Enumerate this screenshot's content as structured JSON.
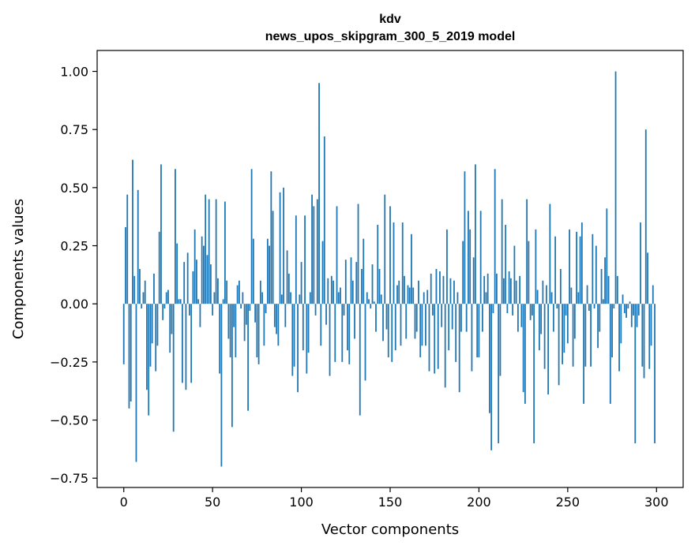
{
  "chart_data": {
    "type": "bar",
    "title": "kdv",
    "subtitle": "news_upos_skipgram_300_5_2019 model",
    "xlabel": "Vector components",
    "ylabel": "Components values",
    "xlim": [
      -15,
      315
    ],
    "ylim": [
      -0.79,
      1.09
    ],
    "x_ticks": [
      0,
      50,
      100,
      150,
      200,
      250,
      300
    ],
    "x_tick_labels": [
      "0",
      "50",
      "100",
      "150",
      "200",
      "250",
      "300"
    ],
    "y_ticks": [
      -0.75,
      -0.5,
      -0.25,
      0.0,
      0.25,
      0.5,
      0.75,
      1.0
    ],
    "y_tick_labels": [
      "−0.75",
      "−0.50",
      "−0.25",
      "0.00",
      "0.25",
      "0.50",
      "0.75",
      "1.00"
    ],
    "bar_color": "#1f77b4",
    "grid": false,
    "x": "0..299",
    "values": [
      -0.26,
      0.33,
      0.47,
      -0.45,
      -0.42,
      0.62,
      0.12,
      -0.68,
      0.49,
      0.15,
      -0.02,
      0.05,
      0.1,
      -0.37,
      -0.48,
      -0.27,
      -0.17,
      0.13,
      -0.29,
      -0.18,
      0.31,
      0.6,
      -0.07,
      -0.02,
      0.05,
      0.06,
      -0.21,
      -0.13,
      -0.55,
      0.58,
      0.26,
      0.02,
      0.02,
      -0.34,
      0.18,
      -0.37,
      0.22,
      -0.05,
      -0.34,
      0.14,
      0.32,
      0.19,
      0.02,
      -0.1,
      0.29,
      0.25,
      0.47,
      0.21,
      0.45,
      0.17,
      -0.05,
      0.05,
      0.45,
      0.11,
      -0.3,
      -0.7,
      0.02,
      0.44,
      0.1,
      -0.15,
      -0.23,
      -0.53,
      -0.1,
      -0.23,
      0.08,
      0.1,
      -0.02,
      0.05,
      -0.16,
      -0.09,
      -0.46,
      -0.03,
      0.58,
      0.28,
      -0.08,
      -0.23,
      -0.26,
      0.1,
      0.05,
      -0.18,
      -0.04,
      0.28,
      0.25,
      0.57,
      0.4,
      -0.1,
      -0.13,
      -0.18,
      0.48,
      0.04,
      0.5,
      -0.1,
      0.23,
      0.13,
      0.05,
      -0.31,
      -0.27,
      0.38,
      -0.38,
      0.04,
      0.18,
      -0.2,
      0.38,
      -0.3,
      -0.21,
      0.05,
      0.47,
      0.42,
      -0.05,
      0.45,
      0.95,
      -0.18,
      0.27,
      0.72,
      -0.09,
      0.11,
      -0.31,
      0.12,
      0.1,
      -0.25,
      0.42,
      0.05,
      0.07,
      -0.25,
      -0.05,
      0.19,
      -0.2,
      -0.26,
      0.2,
      0.1,
      -0.15,
      0.18,
      0.43,
      -0.48,
      0.15,
      0.28,
      -0.33,
      0.05,
      0.02,
      -0.02,
      0.17,
      0.01,
      -0.12,
      0.34,
      0.15,
      0.04,
      -0.16,
      0.47,
      -0.11,
      -0.23,
      0.42,
      -0.25,
      0.35,
      -0.2,
      0.08,
      0.1,
      -0.18,
      0.35,
      0.12,
      -0.15,
      0.08,
      0.07,
      0.3,
      0.07,
      -0.15,
      -0.12,
      0.1,
      -0.23,
      -0.18,
      0.05,
      -0.18,
      0.06,
      -0.29,
      0.13,
      -0.05,
      -0.3,
      0.15,
      -0.28,
      0.14,
      -0.1,
      0.12,
      -0.36,
      0.32,
      -0.2,
      0.11,
      -0.11,
      0.1,
      -0.25,
      0.05,
      -0.38,
      -0.12,
      0.27,
      0.57,
      -0.12,
      0.4,
      0.32,
      -0.29,
      0.2,
      0.6,
      -0.23,
      -0.23,
      0.4,
      -0.12,
      0.12,
      0.05,
      0.13,
      -0.47,
      -0.63,
      -0.04,
      0.58,
      0.13,
      -0.6,
      -0.31,
      0.45,
      0.11,
      0.34,
      -0.04,
      0.14,
      0.11,
      -0.05,
      0.25,
      0.1,
      -0.12,
      0.12,
      -0.1,
      -0.38,
      -0.43,
      0.45,
      0.27,
      -0.07,
      -0.05,
      -0.6,
      0.32,
      0.06,
      -0.2,
      -0.13,
      0.1,
      -0.28,
      0.08,
      -0.39,
      0.43,
      0.05,
      -0.12,
      0.29,
      -0.02,
      -0.35,
      0.15,
      -0.26,
      -0.21,
      -0.05,
      -0.17,
      0.32,
      0.07,
      -0.27,
      -0.15,
      0.31,
      0.05,
      0.29,
      0.35,
      -0.43,
      -0.27,
      0.08,
      -0.03,
      -0.27,
      0.3,
      -0.02,
      0.25,
      -0.19,
      -0.12,
      0.15,
      0.02,
      0.2,
      0.41,
      0.12,
      -0.43,
      -0.23,
      -0.02,
      1.0,
      0.12,
      -0.29,
      -0.17,
      0.04,
      -0.04,
      -0.06,
      -0.02,
      0.01,
      -0.1,
      -0.05,
      -0.6,
      -0.1,
      -0.05,
      0.35,
      -0.27,
      -0.32,
      0.75,
      0.22,
      -0.28,
      -0.18,
      0.08,
      -0.6
    ]
  }
}
